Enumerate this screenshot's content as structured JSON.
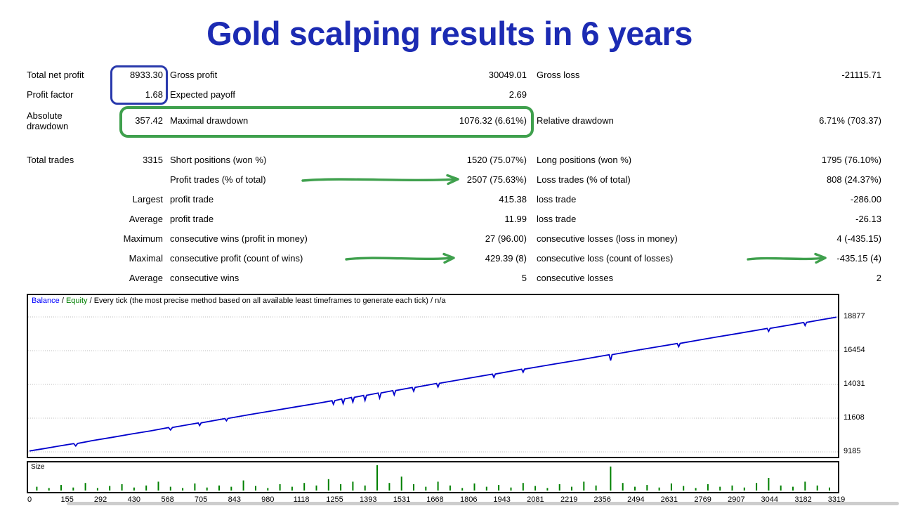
{
  "title": "Gold scalping results in 6 years",
  "colors": {
    "title_blue": "#1c2bb3",
    "annotation_blue": "#2939ac",
    "annotation_green": "#3fa04d",
    "balance_line": "#0000cc",
    "balance_label": "#0000ff",
    "equity_label": "#008000",
    "size_bars": "#008000",
    "grid": "#bdbdbd",
    "chart_border": "#141414",
    "scrollbar": "#cdcdcd"
  },
  "stats": {
    "rows": [
      {
        "c1": "Total net profit",
        "c2": "8933.30",
        "c3": "Gross profit",
        "c4": "30049.01",
        "c5": "Gross loss",
        "c6": "-21115.71"
      },
      {
        "c1": "Profit factor",
        "c2": "1.68",
        "c3": "Expected payoff",
        "c4": "2.69",
        "c5": "",
        "c6": ""
      },
      {
        "c1": "Absolute drawdown",
        "c2": "357.42",
        "c3": "Maximal drawdown",
        "c4": "1076.32 (6.61%)",
        "c5": "Relative drawdown",
        "c6": "6.71% (703.37)"
      },
      {
        "c1": "Total trades",
        "c2": "3315",
        "c3": "Short positions (won %)",
        "c4": "1520 (75.07%)",
        "c5": "Long positions (won %)",
        "c6": "1795 (76.10%)"
      },
      {
        "c1": "",
        "c2": "",
        "c3": "Profit trades (% of total)",
        "c4": "2507 (75.63%)",
        "c5": "Loss trades (% of total)",
        "c6": "808 (24.37%)"
      },
      {
        "c1": "",
        "c2": "Largest",
        "c3": "profit trade",
        "c4": "415.38",
        "c5": "loss trade",
        "c6": "-286.00"
      },
      {
        "c1": "",
        "c2": "Average",
        "c3": "profit trade",
        "c4": "11.99",
        "c5": "loss trade",
        "c6": "-26.13"
      },
      {
        "c1": "",
        "c2": "Maximum",
        "c3": "consecutive wins (profit in money)",
        "c4": "27 (96.00)",
        "c5": "consecutive losses (loss in money)",
        "c6": "4 (-435.15)"
      },
      {
        "c1": "",
        "c2": "Maximal",
        "c3": "consecutive profit (count of wins)",
        "c4": "429.39 (8)",
        "c5": "consecutive loss (count of losses)",
        "c6": "-435.15 (4)"
      },
      {
        "c1": "",
        "c2": "Average",
        "c3": "consecutive wins",
        "c4": "5",
        "c5": "consecutive losses",
        "c6": "2"
      }
    ]
  },
  "chart_header": {
    "balance_label": "Balance",
    "equity_label": "Equity",
    "separator": " / ",
    "method_text": "Every tick (the most precise method based on all available least timeframes to generate each tick)",
    "na_label": "n/a"
  },
  "chart_data": [
    {
      "type": "line",
      "name": "balance-curve",
      "ylim": [
        9185,
        18877
      ],
      "yticks": [
        18877,
        16454,
        14031,
        11608,
        9185
      ],
      "xticks": [
        0,
        155,
        292,
        430,
        568,
        705,
        843,
        980,
        1118,
        1255,
        1393,
        1531,
        1668,
        1806,
        1943,
        2081,
        2219,
        2356,
        2494,
        2631,
        2769,
        2907,
        3044,
        3182,
        3319
      ],
      "grid": "horizontal-dotted",
      "y_axis_side": "right",
      "series": [
        {
          "name": "Balance",
          "color": "#0000cc",
          "x": [
            0,
            60,
            120,
            182,
            190,
            198,
            260,
            340,
            420,
            500,
            572,
            580,
            588,
            660,
            694,
            700,
            706,
            804,
            810,
            816,
            900,
            1000,
            1100,
            1200,
            1244,
            1250,
            1256,
            1284,
            1290,
            1296,
            1324,
            1330,
            1336,
            1374,
            1380,
            1386,
            1434,
            1440,
            1446,
            1494,
            1500,
            1506,
            1574,
            1580,
            1586,
            1674,
            1680,
            1686,
            1790,
            1904,
            1910,
            1916,
            2024,
            2030,
            2036,
            2150,
            2270,
            2384,
            2390,
            2396,
            2500,
            2600,
            2664,
            2670,
            2676,
            2780,
            2900,
            3034,
            3040,
            3046,
            3130,
            3184,
            3190,
            3196,
            3260,
            3319
          ],
          "y": [
            9250,
            9420,
            9600,
            9780,
            9610,
            9790,
            10000,
            10230,
            10470,
            10700,
            10930,
            10760,
            10940,
            11160,
            11260,
            11080,
            11270,
            11580,
            11420,
            11590,
            11850,
            12140,
            12430,
            12720,
            12860,
            12600,
            12870,
            12980,
            12650,
            12990,
            13090,
            12760,
            13100,
            13240,
            12880,
            13250,
            13410,
            13050,
            13420,
            13580,
            13280,
            13590,
            13810,
            13540,
            13820,
            14100,
            13850,
            14110,
            14430,
            14770,
            14540,
            14780,
            15120,
            14910,
            15130,
            15470,
            15820,
            16160,
            15750,
            16170,
            16490,
            16780,
            16970,
            16740,
            16980,
            17300,
            17650,
            18050,
            17840,
            18060,
            18310,
            18480,
            18260,
            18490,
            18690,
            18860
          ]
        }
      ]
    },
    {
      "type": "bar",
      "title": "Size",
      "bar_color": "#008000",
      "x": [
        30,
        80,
        130,
        180,
        230,
        280,
        330,
        380,
        430,
        480,
        530,
        580,
        630,
        680,
        730,
        780,
        830,
        880,
        930,
        980,
        1030,
        1080,
        1130,
        1180,
        1230,
        1280,
        1330,
        1380,
        1430,
        1480,
        1530,
        1580,
        1630,
        1680,
        1730,
        1780,
        1830,
        1880,
        1930,
        1980,
        2030,
        2080,
        2130,
        2180,
        2230,
        2280,
        2330,
        2390,
        2440,
        2490,
        2540,
        2590,
        2640,
        2690,
        2740,
        2790,
        2840,
        2890,
        2940,
        2990,
        3040,
        3090,
        3140,
        3190,
        3240,
        3290
      ],
      "relative_heights": [
        0.15,
        0.1,
        0.22,
        0.12,
        0.3,
        0.1,
        0.18,
        0.25,
        0.12,
        0.2,
        0.35,
        0.15,
        0.1,
        0.28,
        0.12,
        0.2,
        0.15,
        0.4,
        0.18,
        0.1,
        0.25,
        0.15,
        0.3,
        0.2,
        0.45,
        0.25,
        0.35,
        0.2,
        1.0,
        0.3,
        0.55,
        0.25,
        0.15,
        0.35,
        0.2,
        0.1,
        0.28,
        0.15,
        0.22,
        0.12,
        0.3,
        0.18,
        0.1,
        0.25,
        0.15,
        0.35,
        0.2,
        0.95,
        0.3,
        0.15,
        0.22,
        0.12,
        0.28,
        0.18,
        0.1,
        0.25,
        0.15,
        0.2,
        0.12,
        0.3,
        0.5,
        0.2,
        0.15,
        0.35,
        0.2,
        0.12
      ]
    }
  ]
}
